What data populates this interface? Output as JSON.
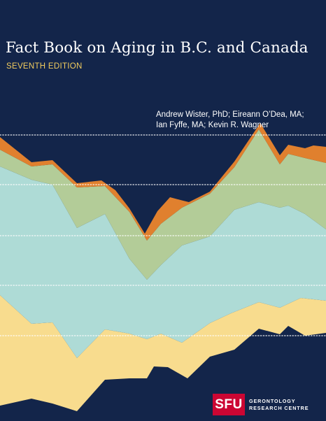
{
  "cover": {
    "title": "Fact Book on Aging in B.C. and Canada",
    "edition": "SEVENTH EDITION",
    "authors": {
      "line1": "Andrew Wister, PhD; Eireann O’Dea, MA;",
      "line2": "Ian Fyffe, MA; Kevin R. Wagner"
    },
    "logo": {
      "abbr": "SFU",
      "line1": "GERONTOLOGY",
      "line2": "RESEARCH CENTRE"
    },
    "colors": {
      "background": "#13254a",
      "orange": "#e0802e",
      "green": "#b3cc98",
      "teal": "#aedbd6",
      "yellow": "#f8dc8e",
      "edition_text": "#f2cc5e",
      "sfu_red": "#cc0633"
    }
  }
}
